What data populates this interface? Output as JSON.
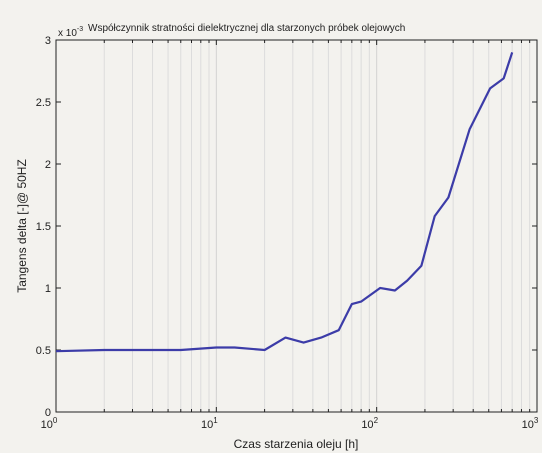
{
  "chart_data": {
    "type": "line",
    "title": "Współczynnik stratności dielektrycznej dla starzonych próbek olejowych",
    "xlabel": "Czas starzenia oleju [h]",
    "ylabel": "Tangens delta [-]@ 50HZ",
    "y_multiplier_base": "x 10",
    "y_multiplier_exp": "-3",
    "xscale": "log",
    "xlim": [
      1,
      1000
    ],
    "ylim": [
      0,
      0.003
    ],
    "grid": "vertical-minor",
    "x_ticks": [
      1,
      10,
      100,
      1000
    ],
    "x_tick_labels": [
      {
        "base": "10",
        "exp": "0"
      },
      {
        "base": "10",
        "exp": "1"
      },
      {
        "base": "10",
        "exp": "2"
      },
      {
        "base": "10",
        "exp": "3"
      }
    ],
    "y_ticks": [
      0,
      0.0005,
      0.001,
      0.0015,
      0.002,
      0.0025,
      0.003
    ],
    "y_tick_labels": [
      "0",
      "0.5",
      "1",
      "1.5",
      "2",
      "2.5",
      "3"
    ],
    "line_color": "#3c3ca8",
    "series": [
      {
        "x": [
          1,
          2,
          3,
          6,
          10,
          13,
          20,
          27,
          35,
          45,
          58,
          70,
          80,
          105,
          130,
          155,
          190,
          230,
          280,
          380,
          510,
          620,
          700
        ],
        "y": [
          0.00049,
          0.0005,
          0.0005,
          0.0005,
          0.00052,
          0.00052,
          0.0005,
          0.0006,
          0.00056,
          0.0006,
          0.00066,
          0.00087,
          0.00089,
          0.001,
          0.00098,
          0.00106,
          0.00118,
          0.00158,
          0.00173,
          0.00228,
          0.00261,
          0.00269,
          0.0029
        ]
      }
    ]
  }
}
